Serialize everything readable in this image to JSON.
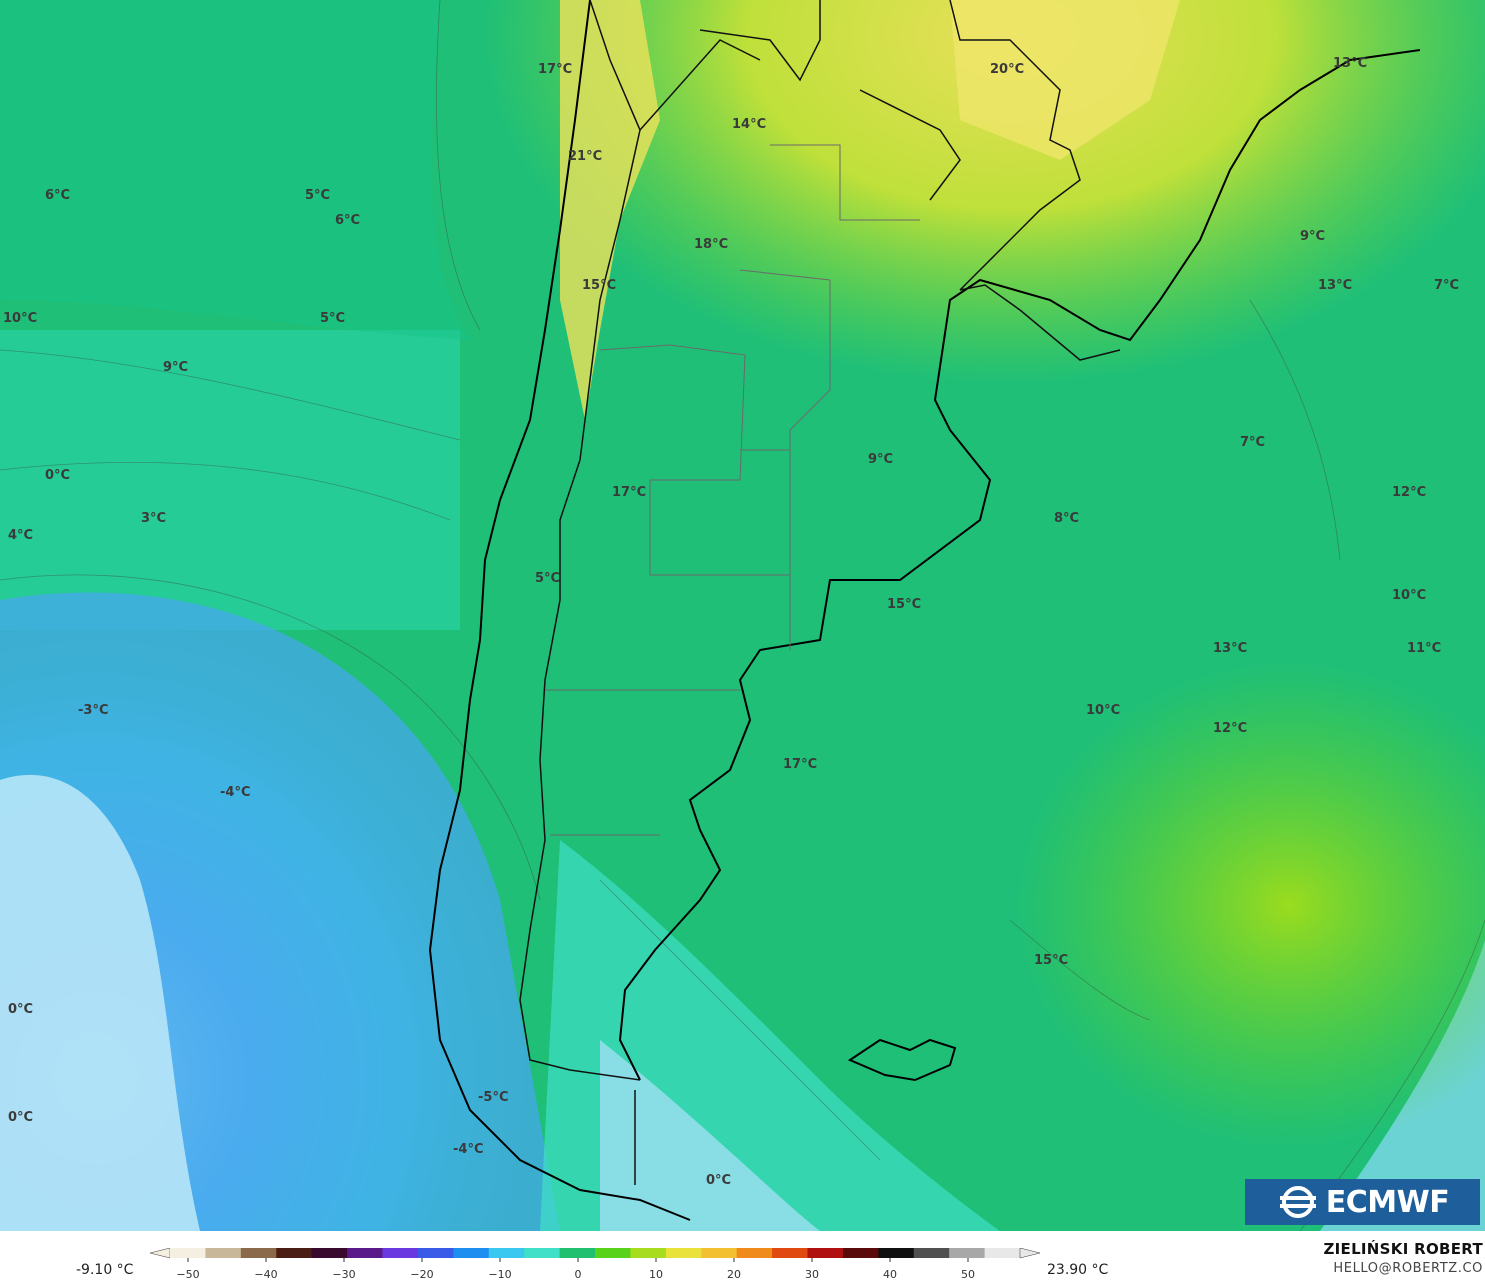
{
  "map": {
    "labels": [
      {
        "text": "17°C"
      },
      {
        "text": "20°C"
      },
      {
        "text": "13°C"
      },
      {
        "text": "14°C"
      },
      {
        "text": "21°C"
      },
      {
        "text": "6°C"
      },
      {
        "text": "5°C"
      },
      {
        "text": "6°C"
      },
      {
        "text": "18°C"
      },
      {
        "text": "9°C"
      },
      {
        "text": "13°C"
      },
      {
        "text": "7°C"
      },
      {
        "text": "15°C"
      },
      {
        "text": "10°C"
      },
      {
        "text": "5°C"
      },
      {
        "text": "9°C"
      },
      {
        "text": "7°C"
      },
      {
        "text": "9°C"
      },
      {
        "text": "0°C"
      },
      {
        "text": "17°C"
      },
      {
        "text": "12°C"
      },
      {
        "text": "3°C"
      },
      {
        "text": "8°C"
      },
      {
        "text": "4°C"
      },
      {
        "text": "5°C"
      },
      {
        "text": "15°C"
      },
      {
        "text": "10°C"
      },
      {
        "text": "13°C"
      },
      {
        "text": "11°C"
      },
      {
        "text": "-3°C"
      },
      {
        "text": "10°C"
      },
      {
        "text": "12°C"
      },
      {
        "text": "17°C"
      },
      {
        "text": "-4°C"
      },
      {
        "text": "15°C"
      },
      {
        "text": "0°C"
      },
      {
        "text": "0°C"
      },
      {
        "text": "-5°C"
      },
      {
        "text": "-4°C"
      },
      {
        "text": "0°C"
      }
    ]
  },
  "legend": {
    "min_label": "-9.10 °C",
    "max_label": "23.90 °C",
    "ticks": [
      "−50",
      "−40",
      "−30",
      "−20",
      "−10",
      "0",
      "10",
      "20",
      "30",
      "40",
      "50"
    ],
    "colors": [
      "#f5efe2",
      "#c9b79a",
      "#8a6a4a",
      "#4a1e14",
      "#3a0a2e",
      "#5a1a8a",
      "#6a3ae0",
      "#3a5ae8",
      "#1e8ef0",
      "#3ac8f0",
      "#40e0c8",
      "#20c070",
      "#58d21a",
      "#a8dc1e",
      "#e8e23a",
      "#f2c030",
      "#f08a1a",
      "#e04a10",
      "#b01010",
      "#5a0a0a",
      "#101010",
      "#505050",
      "#a8a8a8",
      "#e8e8e8"
    ]
  },
  "branding": {
    "logo_text": "ECMWF",
    "author": "ZIELIŃSKI ROBERT",
    "email": "HELLO@ROBERTZ.CO"
  }
}
